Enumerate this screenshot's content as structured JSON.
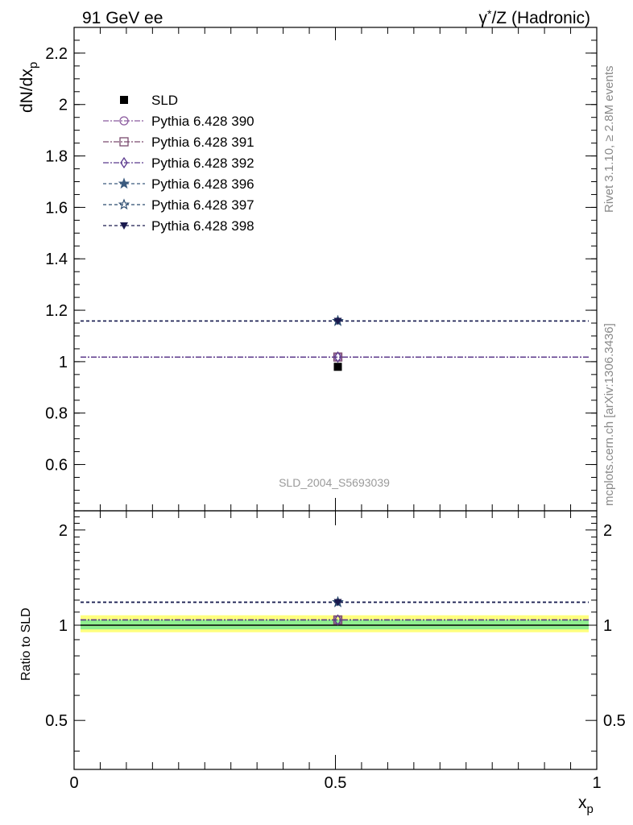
{
  "header": {
    "left": "91 GeV ee",
    "right_symbol": "γ",
    "right_sup": "*",
    "right_rest": "/Z (Hadronic)"
  },
  "side": {
    "rivet": "Rivet 3.1.10, ≥ 2.8M events",
    "mcplots": "mcplots.cern.ch [arXiv:1306.3436]"
  },
  "watermark": "SLD_2004_S5693039",
  "chart_data": [
    {
      "type": "scatter",
      "panel": "main",
      "ylabel_main": "dN/dx",
      "ylabel_sub": "p",
      "xlim": [
        0,
        1
      ],
      "ylim": [
        0.42,
        2.3
      ],
      "yticks": [
        0.6,
        0.8,
        1,
        1.2,
        1.4,
        1.6,
        1.8,
        2,
        2.2
      ],
      "ytick_labels": [
        "0.6",
        "0.8",
        "1",
        "1.2",
        "1.4",
        "1.6",
        "1.8",
        "2",
        "2.2"
      ],
      "data": {
        "name": "SLD",
        "x": 0.5,
        "y": 0.98,
        "color": "#000000"
      },
      "series": [
        {
          "name": "Pythia 6.428 390",
          "x": [
            0.0,
            1.0
          ],
          "y": 1.018,
          "point_x": 0.5,
          "color": "#8b5a9e",
          "marker": "circle-open",
          "dash": "7,2,2,2"
        },
        {
          "name": "Pythia 6.428 391",
          "x": [
            0.0,
            1.0
          ],
          "y": 1.018,
          "point_x": 0.5,
          "color": "#7a4a6e",
          "marker": "square-open",
          "dash": "7,2,2,2"
        },
        {
          "name": "Pythia 6.428 392",
          "x": [
            0.0,
            1.0
          ],
          "y": 1.018,
          "point_x": 0.5,
          "color": "#5b3a8e",
          "marker": "diamond-open",
          "dash": "7,2,2,2"
        },
        {
          "name": "Pythia 6.428 396",
          "x": [
            0.0,
            1.0
          ],
          "y": 1.158,
          "point_x": 0.5,
          "color": "#3a5a7e",
          "marker": "star-filled",
          "dash": "4,3"
        },
        {
          "name": "Pythia 6.428 397",
          "x": [
            0.0,
            1.0
          ],
          "y": 1.158,
          "point_x": 0.5,
          "color": "#2a4a6e",
          "marker": "star-open",
          "dash": "4,3"
        },
        {
          "name": "Pythia 6.428 398",
          "x": [
            0.0,
            1.0
          ],
          "y": 1.158,
          "point_x": 0.5,
          "color": "#1a1a4e",
          "marker": "triangle-down-filled",
          "dash": "4,3"
        }
      ],
      "legend_position": "top-left"
    },
    {
      "type": "line",
      "panel": "ratio",
      "ylabel": "Ratio to SLD",
      "xlabel_main": "x",
      "xlabel_sub": "p",
      "xlim": [
        0,
        1
      ],
      "ylim": [
        0.35,
        2.3
      ],
      "log_y": true,
      "yticks": [
        0.5,
        1,
        2
      ],
      "ytick_labels": [
        "0.5",
        "1",
        "2"
      ],
      "xticks": [
        0,
        0.5,
        1
      ],
      "xtick_labels": [
        "0",
        "0.5",
        "1"
      ],
      "bands": [
        {
          "lo": 0.95,
          "hi": 1.075,
          "color": "#ffff7f"
        },
        {
          "lo": 0.97,
          "hi": 1.04,
          "color": "#8fef8f"
        }
      ],
      "ratio_series": [
        {
          "name": "Pythia 6.428 390",
          "y": 1.039,
          "color": "#8b5a9e",
          "marker": "circle-open",
          "dash": "7,2,2,2"
        },
        {
          "name": "Pythia 6.428 391",
          "y": 1.039,
          "color": "#7a4a6e",
          "marker": "square-open",
          "dash": "7,2,2,2"
        },
        {
          "name": "Pythia 6.428 392",
          "y": 1.039,
          "color": "#5b3a8e",
          "marker": "diamond-open",
          "dash": "7,2,2,2"
        },
        {
          "name": "Pythia 6.428 396",
          "y": 1.182,
          "color": "#3a5a7e",
          "marker": "star-filled",
          "dash": "4,3"
        },
        {
          "name": "Pythia 6.428 397",
          "y": 1.182,
          "color": "#2a4a6e",
          "marker": "star-open",
          "dash": "4,3"
        },
        {
          "name": "Pythia 6.428 398",
          "y": 1.182,
          "color": "#1a1a4e",
          "marker": "triangle-down-filled",
          "dash": "4,3"
        }
      ]
    }
  ]
}
